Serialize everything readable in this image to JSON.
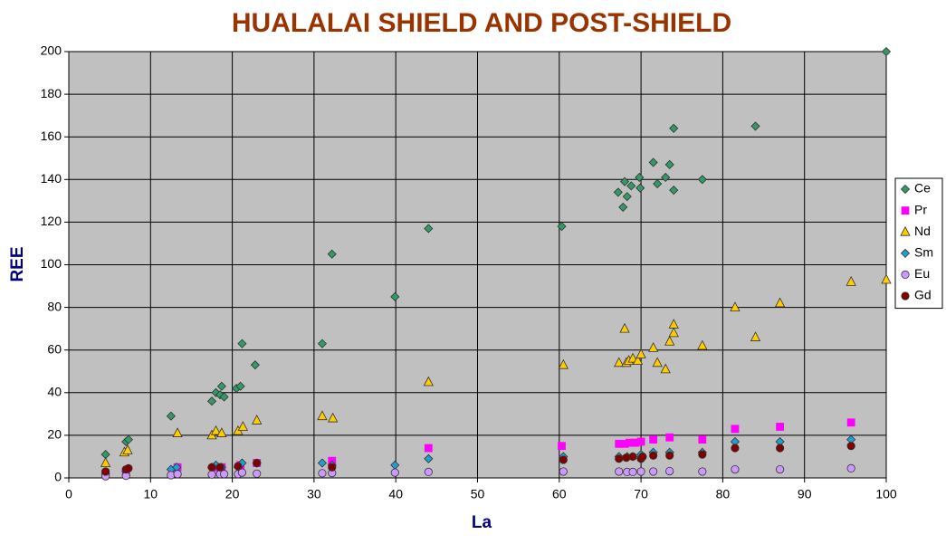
{
  "chart_data": {
    "type": "scatter",
    "title": "HUALALAI SHIELD AND POST-SHIELD",
    "x_label": "La",
    "y_label": "REE",
    "xlim": [
      0,
      100
    ],
    "xticks": [
      0,
      10,
      20,
      30,
      40,
      50,
      60,
      70,
      80,
      90,
      100
    ],
    "ylim": [
      0,
      200
    ],
    "yticks": [
      0,
      20,
      40,
      60,
      80,
      100,
      120,
      140,
      160,
      180,
      200
    ],
    "grid": true,
    "legend": "right",
    "series": [
      {
        "name": "Ce",
        "color": "#339966",
        "marker": "diamond",
        "x": [
          4.5,
          7,
          7.3,
          12.5,
          17.5,
          18,
          18.5,
          18.7,
          19,
          20.5,
          21,
          21.2,
          22.8,
          31,
          32.2,
          39.9,
          44,
          60.3,
          67.2,
          67.8,
          68,
          68.3,
          68.8,
          69.8,
          69.9,
          71.5,
          72,
          73,
          73.5,
          74,
          74,
          77.5,
          84,
          100
        ],
        "values": [
          11,
          17,
          18,
          29,
          36,
          40,
          39,
          43,
          38,
          42,
          43,
          63,
          53,
          63,
          105,
          85,
          117,
          118,
          134,
          127,
          139,
          132,
          137,
          141,
          136,
          148,
          138,
          141,
          147,
          164,
          135,
          140,
          165,
          200
        ]
      },
      {
        "name": "Pr",
        "color": "#ff00ff",
        "marker": "square",
        "x": [
          4.5,
          7,
          13.3,
          18,
          18.7,
          21,
          23,
          32.2,
          44,
          60.3,
          67.3,
          68,
          68.6,
          69.3,
          70,
          71.5,
          73.5,
          77.5,
          81.5,
          87,
          95.7
        ],
        "values": [
          2,
          3,
          5,
          5,
          5,
          6,
          7,
          8,
          14,
          15,
          16,
          16,
          16.5,
          16.5,
          17,
          18,
          19,
          18,
          23,
          24,
          26
        ]
      },
      {
        "name": "Nd",
        "color": "#ffcc00",
        "marker": "triangle",
        "x": [
          4.5,
          6.8,
          7.2,
          13.3,
          17.5,
          18,
          18.7,
          20.7,
          21.3,
          23,
          31,
          32.3,
          44,
          60.5,
          67.3,
          68,
          68.2,
          68.5,
          69,
          69.6,
          70,
          71.5,
          72,
          73,
          73.5,
          74,
          74,
          77.5,
          81.5,
          84,
          87,
          95.7,
          100
        ],
        "values": [
          7,
          12,
          13,
          21,
          20,
          22,
          21,
          22,
          24,
          27,
          29,
          28,
          45,
          53,
          54,
          70,
          54,
          55,
          56,
          55,
          58,
          61,
          54,
          51,
          64,
          68,
          72,
          62,
          80,
          66,
          82,
          92,
          93
        ]
      },
      {
        "name": "Sm",
        "color": "#1fa0d0",
        "marker": "diamond",
        "x": [
          4.5,
          7,
          12.5,
          13.2,
          17.5,
          18,
          18.7,
          20.7,
          21.2,
          23,
          31,
          32.2,
          39.9,
          44,
          60.5,
          67.3,
          68.3,
          69,
          70,
          71.5,
          73.5,
          77.5,
          81.5,
          87,
          95.7
        ],
        "values": [
          2,
          3,
          4,
          5,
          5,
          6,
          5,
          5,
          7,
          7,
          7,
          6,
          6,
          9,
          10,
          10,
          10,
          10,
          11,
          12,
          12,
          12,
          17,
          17,
          18
        ]
      },
      {
        "name": "Eu",
        "color": "#cc99ff",
        "marker": "circle",
        "x": [
          4.5,
          7,
          12.5,
          13.3,
          17.5,
          18.5,
          19,
          20.7,
          21.2,
          23,
          31,
          32.2,
          39.9,
          44,
          60.5,
          67.3,
          68.3,
          69,
          70,
          71.5,
          73.5,
          77.5,
          81.5,
          87,
          95.7
        ],
        "values": [
          0.8,
          1,
          1.3,
          1.8,
          1.6,
          1.8,
          1.8,
          1.8,
          2.5,
          2,
          2.2,
          2.3,
          2.5,
          2.8,
          3,
          3,
          2.8,
          2.8,
          3,
          3,
          3.2,
          3,
          4,
          4,
          4.5
        ]
      },
      {
        "name": "Gd",
        "color": "#800000",
        "marker": "circle",
        "x": [
          4.5,
          7,
          7.3,
          17.5,
          18.5,
          20.7,
          23,
          32.2,
          60.5,
          67.3,
          68.2,
          69,
          70,
          70.2,
          71.5,
          73.5,
          77.5,
          81.5,
          87,
          95.7
        ],
        "values": [
          3,
          4,
          4.5,
          5,
          5,
          5.5,
          7,
          5,
          8.5,
          9,
          9.5,
          10,
          9,
          10,
          10.5,
          10.5,
          11,
          14,
          14,
          15
        ]
      }
    ]
  }
}
